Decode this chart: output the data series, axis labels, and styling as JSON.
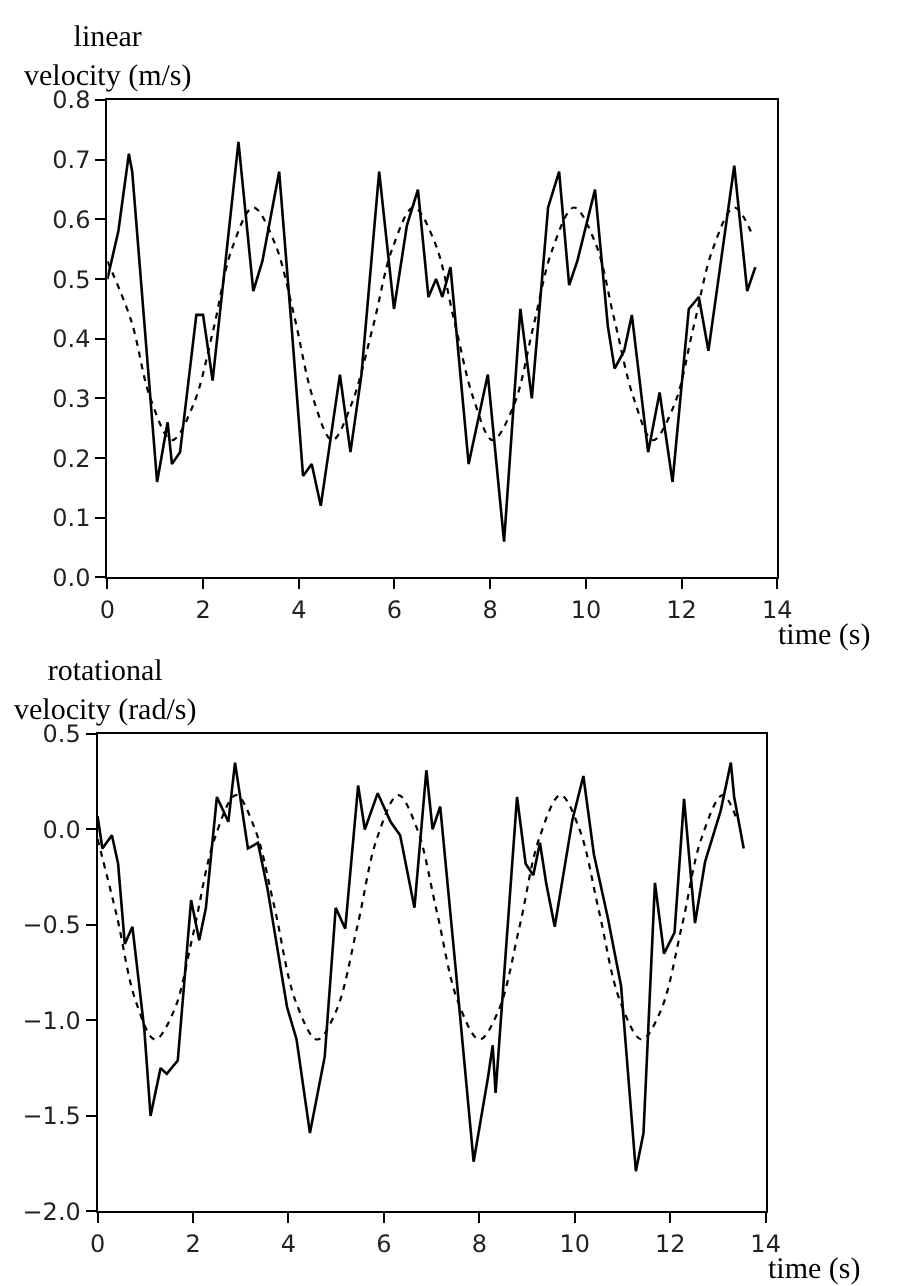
{
  "chart_data": [
    {
      "type": "line",
      "ylabel": "linear\nvelocity (m/s)",
      "xlabel": "time (s)",
      "xlim": [
        0,
        14
      ],
      "xticks": [
        0,
        2,
        4,
        6,
        8,
        10,
        12,
        14
      ],
      "ylim": [
        0,
        0.8
      ],
      "yticks": [
        {
          "value": 0,
          "label": "0.0"
        },
        {
          "value": 0.1,
          "label": "0.1"
        },
        {
          "value": 0.2,
          "label": "0.2"
        },
        {
          "value": 0.3,
          "label": "0.3"
        },
        {
          "value": 0.4,
          "label": "0.4"
        },
        {
          "value": 0.5,
          "label": "0.5"
        },
        {
          "value": 0.6,
          "label": "0.6"
        },
        {
          "value": 0.7,
          "label": "0.7"
        },
        {
          "value": 0.8,
          "label": "0.8"
        }
      ],
      "series": [
        {
          "color": "#000000",
          "line_style": "solid",
          "x": [
            0,
            0.23,
            0.45,
            0.52,
            1.04,
            1.26,
            1.35,
            1.52,
            1.86,
            2.0,
            2.2,
            2.74,
            3.05,
            3.24,
            3.59,
            3.86,
            4.09,
            4.27,
            4.46,
            4.86,
            5.08,
            5.31,
            5.68,
            5.99,
            6.26,
            6.49,
            6.71,
            6.87,
            7.0,
            7.17,
            7.55,
            7.95,
            8.29,
            8.63,
            8.87,
            9.21,
            9.44,
            9.65,
            9.82,
            10.19,
            10.46,
            10.6,
            10.8,
            10.96,
            11.3,
            11.54,
            11.81,
            12.15,
            12.36,
            12.56,
            13.1,
            13.37,
            13.54
          ],
          "values": [
            0.5,
            0.58,
            0.71,
            0.68,
            0.16,
            0.26,
            0.19,
            0.21,
            0.44,
            0.44,
            0.33,
            0.73,
            0.48,
            0.53,
            0.68,
            0.41,
            0.17,
            0.19,
            0.12,
            0.34,
            0.21,
            0.34,
            0.68,
            0.45,
            0.59,
            0.65,
            0.47,
            0.5,
            0.47,
            0.52,
            0.19,
            0.34,
            0.06,
            0.45,
            0.3,
            0.62,
            0.68,
            0.49,
            0.53,
            0.65,
            0.42,
            0.35,
            0.38,
            0.44,
            0.21,
            0.31,
            0.16,
            0.45,
            0.47,
            0.38,
            0.69,
            0.48,
            0.52
          ]
        },
        {
          "color": "#000000",
          "line_style": "dotted",
          "x": [
            0,
            0.5,
            0.9,
            1.35,
            1.8,
            2.2,
            2.6,
            3.05,
            3.5,
            3.9,
            4.3,
            4.7,
            5.1,
            5.55,
            5.95,
            6.4,
            6.85,
            7.25,
            7.65,
            8.05,
            8.5,
            8.9,
            9.3,
            9.75,
            10.2,
            10.6,
            11.0,
            11.4,
            11.85,
            12.25,
            12.65,
            13.1,
            13.5
          ],
          "values": [
            0.53,
            0.43,
            0.3,
            0.23,
            0.29,
            0.41,
            0.55,
            0.62,
            0.56,
            0.44,
            0.3,
            0.23,
            0.29,
            0.42,
            0.55,
            0.62,
            0.56,
            0.43,
            0.3,
            0.23,
            0.29,
            0.42,
            0.55,
            0.62,
            0.56,
            0.43,
            0.3,
            0.23,
            0.29,
            0.42,
            0.55,
            0.62,
            0.57
          ]
        }
      ]
    },
    {
      "type": "line",
      "ylabel": "rotational\nvelocity (rad/s)",
      "xlabel": "time (s)",
      "xlim": [
        0,
        14
      ],
      "xticks": [
        0,
        2,
        4,
        6,
        8,
        10,
        12,
        14
      ],
      "ylim": [
        -2,
        0.5
      ],
      "yticks": [
        {
          "value": -2,
          "label": "−2.0"
        },
        {
          "value": -1.5,
          "label": "−1.5"
        },
        {
          "value": -1,
          "label": "−1.0"
        },
        {
          "value": -0.5,
          "label": "−0.5"
        },
        {
          "value": 0,
          "label": "0.0"
        },
        {
          "value": 0.5,
          "label": "0.5"
        }
      ],
      "series": [
        {
          "color": "#000000",
          "line_style": "solid",
          "x": [
            0,
            0.1,
            0.3,
            0.43,
            0.57,
            0.73,
            0.98,
            1.11,
            1.32,
            1.45,
            1.68,
            1.96,
            2.13,
            2.27,
            2.5,
            2.74,
            2.88,
            3.15,
            3.36,
            3.56,
            3.97,
            4.17,
            4.45,
            4.76,
            4.99,
            5.19,
            5.46,
            5.6,
            5.87,
            6.14,
            6.34,
            6.64,
            6.89,
            7.02,
            7.18,
            7.5,
            7.88,
            8.18,
            8.28,
            8.34,
            8.79,
            8.97,
            9.13,
            9.27,
            9.4,
            9.58,
            9.95,
            10.18,
            10.4,
            10.69,
            10.97,
            11.28,
            11.44,
            11.68,
            11.87,
            12.09,
            12.29,
            12.52,
            12.73,
            13.06,
            13.27,
            13.34,
            13.54
          ],
          "values": [
            0.07,
            -0.1,
            -0.03,
            -0.18,
            -0.6,
            -0.51,
            -1.05,
            -1.5,
            -1.25,
            -1.28,
            -1.21,
            -0.37,
            -0.58,
            -0.41,
            0.17,
            0.04,
            0.35,
            -0.1,
            -0.07,
            -0.31,
            -0.93,
            -1.1,
            -1.59,
            -1.19,
            -0.41,
            -0.52,
            0.23,
            0.0,
            0.19,
            0.04,
            -0.03,
            -0.41,
            0.31,
            0.0,
            0.12,
            -0.72,
            -1.74,
            -1.3,
            -1.13,
            -1.38,
            0.17,
            -0.18,
            -0.24,
            -0.07,
            -0.28,
            -0.51,
            0.05,
            0.28,
            -0.13,
            -0.46,
            -0.82,
            -1.79,
            -1.59,
            -0.28,
            -0.65,
            -0.54,
            0.16,
            -0.49,
            -0.17,
            0.1,
            0.35,
            0.17,
            -0.1
          ]
        },
        {
          "color": "#000000",
          "line_style": "dotted",
          "x": [
            0,
            0.4,
            0.8,
            1.2,
            1.6,
            2.0,
            2.45,
            2.9,
            3.3,
            3.7,
            4.15,
            4.6,
            5.0,
            5.45,
            5.85,
            6.3,
            6.7,
            7.1,
            7.55,
            8.0,
            8.4,
            8.85,
            9.25,
            9.7,
            10.1,
            10.5,
            10.95,
            11.4,
            11.8,
            12.25,
            12.65,
            13.1,
            13.4
          ],
          "values": [
            -0.05,
            -0.45,
            -0.9,
            -1.1,
            -0.95,
            -0.55,
            -0.05,
            0.18,
            0.0,
            -0.4,
            -0.9,
            -1.1,
            -0.95,
            -0.5,
            -0.05,
            0.18,
            0.0,
            -0.42,
            -0.9,
            -1.1,
            -0.95,
            -0.5,
            -0.05,
            0.18,
            0.0,
            -0.42,
            -0.9,
            -1.1,
            -0.95,
            -0.5,
            -0.05,
            0.18,
            0.05
          ]
        }
      ]
    }
  ]
}
